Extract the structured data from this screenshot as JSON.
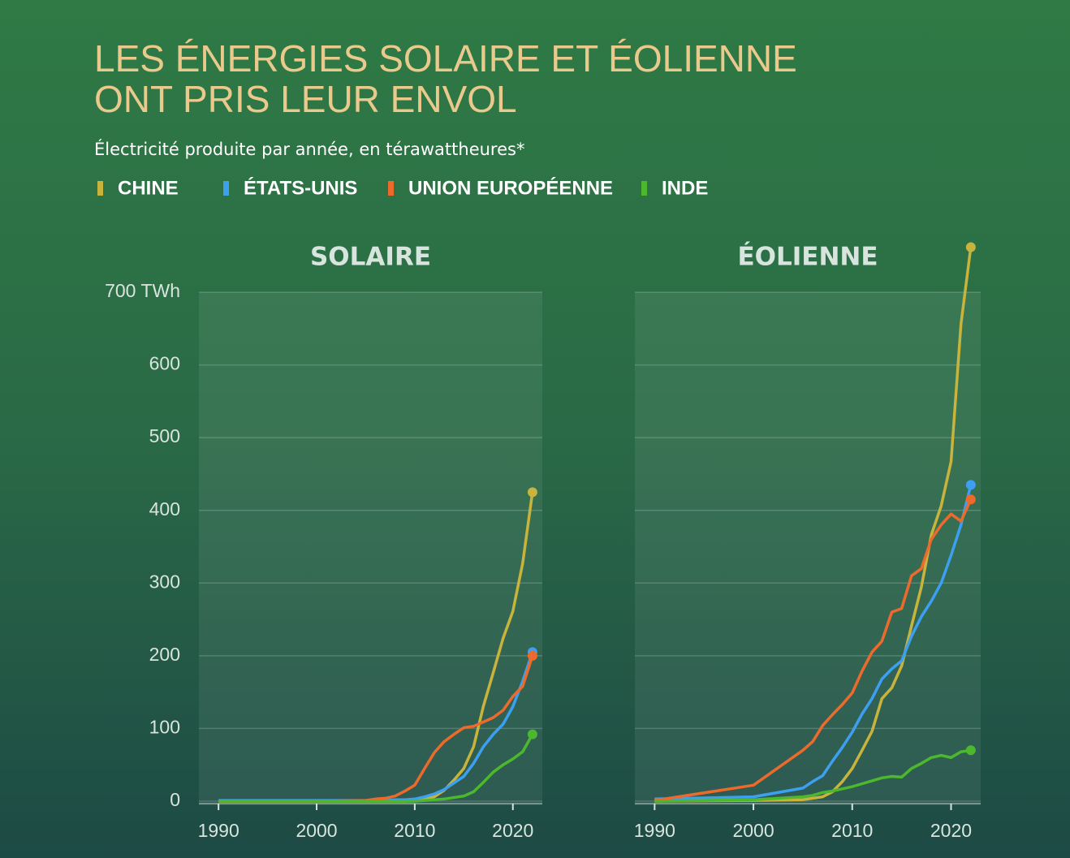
{
  "title": [
    "LES ÉNERGIES SOLAIRE ET ÉOLIENNE",
    "ONT PRIS LEUR ENVOL"
  ],
  "subtitle": "Électricité produite par année, en térawattheures*",
  "chart_data": [
    {
      "type": "line",
      "title": "SOLAIRE",
      "x": [
        1990,
        2000,
        2005,
        2006,
        2007,
        2008,
        2009,
        2010,
        2011,
        2012,
        2013,
        2014,
        2015,
        2016,
        2017,
        2018,
        2019,
        2020,
        2021,
        2022
      ],
      "xlim": [
        1988,
        2023
      ],
      "xticks": [
        1990,
        2000,
        2010,
        2020
      ],
      "ylim": [
        0,
        700
      ],
      "yticks": [
        0,
        100,
        200,
        300,
        400,
        500,
        600,
        {
          "value": 700,
          "label": "700 TWh"
        }
      ],
      "series": [
        {
          "name": "CHINE",
          "color": "#c8b43c",
          "values": [
            0,
            0,
            0,
            0,
            0,
            0,
            0,
            1,
            3,
            6,
            15,
            29,
            45,
            75,
            131,
            177,
            224,
            261,
            327,
            425
          ]
        },
        {
          "name": "ÉTATS-UNIS",
          "color": "#3d9ff0",
          "values": [
            1,
            1,
            1,
            1,
            1,
            2,
            2,
            3,
            6,
            10,
            16,
            25,
            34,
            52,
            75,
            92,
            106,
            130,
            165,
            205
          ]
        },
        {
          "name": "UNION EUROPÉENNE",
          "color": "#ec6a2c",
          "values": [
            0,
            0,
            1,
            3,
            4,
            7,
            14,
            22,
            45,
            67,
            82,
            92,
            101,
            103,
            109,
            115,
            125,
            144,
            158,
            200
          ]
        },
        {
          "name": "INDE",
          "color": "#4cb82e",
          "values": [
            0,
            0,
            0,
            0,
            0,
            0,
            0,
            0,
            1,
            2,
            3,
            5,
            7,
            13,
            26,
            40,
            50,
            58,
            68,
            92
          ]
        }
      ]
    },
    {
      "type": "line",
      "title": "ÉOLIENNE",
      "x": [
        1990,
        2000,
        2005,
        2006,
        2007,
        2008,
        2009,
        2010,
        2011,
        2012,
        2013,
        2014,
        2015,
        2016,
        2017,
        2018,
        2019,
        2020,
        2021,
        2022
      ],
      "xlim": [
        1988,
        2023
      ],
      "xticks": [
        1990,
        2000,
        2010,
        2020
      ],
      "ylim": [
        0,
        700
      ],
      "yticks": [
        0,
        100,
        200,
        300,
        400,
        500,
        600,
        700
      ],
      "series": [
        {
          "name": "CHINE",
          "color": "#c8b43c",
          "values": [
            0,
            1,
            2,
            4,
            6,
            13,
            27,
            45,
            70,
            96,
            141,
            156,
            186,
            241,
            295,
            366,
            406,
            467,
            656,
            762
          ]
        },
        {
          "name": "ÉTATS-UNIS",
          "color": "#3d9ff0",
          "values": [
            3,
            6,
            18,
            27,
            35,
            55,
            74,
            95,
            120,
            141,
            168,
            182,
            193,
            227,
            254,
            275,
            300,
            338,
            380,
            435
          ]
        },
        {
          "name": "UNION EUROPÉENNE",
          "color": "#ec6a2c",
          "values": [
            1,
            22,
            70,
            82,
            104,
            119,
            133,
            149,
            179,
            205,
            220,
            260,
            265,
            310,
            320,
            360,
            380,
            395,
            385,
            415
          ]
        },
        {
          "name": "INDE",
          "color": "#4cb82e",
          "values": [
            0,
            2,
            6,
            8,
            12,
            14,
            17,
            20,
            24,
            28,
            32,
            34,
            33,
            45,
            52,
            60,
            63,
            60,
            68,
            70
          ]
        }
      ]
    }
  ]
}
